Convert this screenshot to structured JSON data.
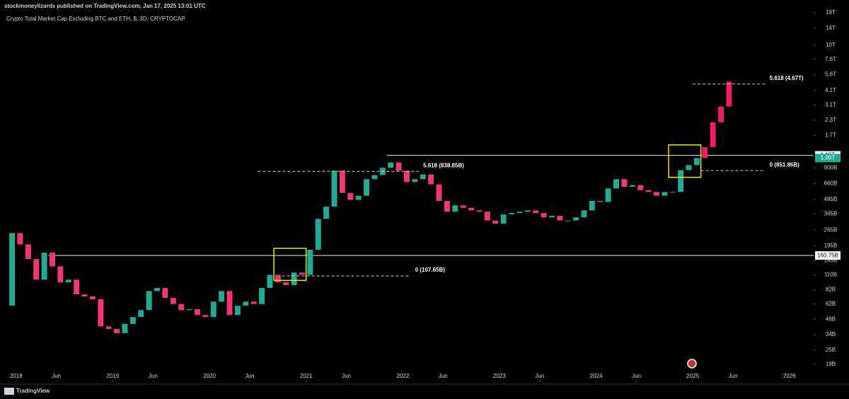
{
  "header": "stockmoneylizards published on TradingView.com, Jan 17, 2025 13:01 UTC",
  "footer": "TradingView",
  "chart_data": {
    "type": "candlestick",
    "title": "Crypto Total Market Cap Excluding BTC and ETH, $, 3D, CRYPTOCAP",
    "log_scale": true,
    "grid": false,
    "x": [
      "2017-12",
      "2018-01",
      "2018-02",
      "2018-03",
      "2018-04",
      "2018-05",
      "2018-06",
      "2018-07",
      "2018-08",
      "2018-09",
      "2018-10",
      "2018-11",
      "2018-12",
      "2019-01",
      "2019-02",
      "2019-03",
      "2019-04",
      "2019-05",
      "2019-06",
      "2019-07",
      "2019-08",
      "2019-09",
      "2019-10",
      "2019-11",
      "2019-12",
      "2020-01",
      "2020-02",
      "2020-03",
      "2020-04",
      "2020-05",
      "2020-06",
      "2020-07",
      "2020-08",
      "2020-09",
      "2020-10",
      "2020-11",
      "2020-12",
      "2021-01",
      "2021-02",
      "2021-03",
      "2021-04",
      "2021-05",
      "2021-06",
      "2021-07",
      "2021-08",
      "2021-09",
      "2021-10",
      "2021-11",
      "2021-12",
      "2022-01",
      "2022-02",
      "2022-03",
      "2022-04",
      "2022-05",
      "2022-06",
      "2022-07",
      "2022-08",
      "2022-09",
      "2022-10",
      "2022-11",
      "2022-12",
      "2023-01",
      "2023-02",
      "2023-03",
      "2023-04",
      "2023-05",
      "2023-06",
      "2023-07",
      "2023-08",
      "2023-09",
      "2023-10",
      "2023-11",
      "2023-12",
      "2024-01",
      "2024-02",
      "2024-03",
      "2024-04",
      "2024-05",
      "2024-06",
      "2024-07",
      "2024-08",
      "2024-09",
      "2024-10",
      "2024-11",
      "2024-12",
      "2025-01"
    ],
    "open": [
      60,
      250,
      200,
      150,
      100,
      170,
      130,
      95,
      100,
      75,
      72,
      68,
      40,
      38,
      35,
      42,
      48,
      55,
      80,
      85,
      70,
      62,
      55,
      56,
      50,
      48,
      65,
      80,
      50,
      60,
      65,
      62,
      85,
      110,
      95,
      90,
      115,
      110,
      180,
      330,
      420,
      850,
      550,
      480,
      520,
      720,
      780,
      900,
      1000,
      850,
      680,
      720,
      790,
      650,
      470,
      380,
      430,
      410,
      390,
      380,
      320,
      300,
      360,
      370,
      380,
      390,
      370,
      340,
      350,
      320,
      320,
      340,
      390,
      470,
      460,
      600,
      720,
      620,
      640,
      580,
      560,
      520,
      560,
      560,
      860,
      950
    ],
    "close": [
      250,
      200,
      150,
      100,
      170,
      130,
      95,
      100,
      75,
      72,
      68,
      40,
      38,
      35,
      42,
      48,
      55,
      80,
      85,
      70,
      62,
      55,
      56,
      50,
      48,
      65,
      80,
      50,
      60,
      65,
      62,
      85,
      110,
      95,
      90,
      115,
      110,
      180,
      330,
      420,
      850,
      550,
      480,
      520,
      720,
      780,
      900,
      1000,
      850,
      680,
      720,
      790,
      650,
      470,
      380,
      430,
      410,
      390,
      380,
      320,
      300,
      360,
      370,
      380,
      390,
      370,
      340,
      350,
      320,
      320,
      340,
      390,
      470,
      460,
      600,
      720,
      620,
      640,
      580,
      560,
      520,
      560,
      560,
      860,
      950,
      1090
    ],
    "up_color": "#22ab94",
    "down_color": "#f23670",
    "projection": {
      "color": "#e91e63",
      "x": [
        "2025-02",
        "2025-03",
        "2025-04",
        "2025-05"
      ],
      "open": [
        1090,
        1350,
        2200,
        3000
      ],
      "close": [
        1350,
        2200,
        3000,
        4900
      ]
    },
    "xlim": [
      "2017-11",
      "2026-04"
    ],
    "xticks": [
      {
        "value": "2018-01",
        "label": "2018"
      },
      {
        "value": "2018-06",
        "label": "Jun"
      },
      {
        "value": "2019-01",
        "label": "2019"
      },
      {
        "value": "2019-06",
        "label": "Jun"
      },
      {
        "value": "2020-01",
        "label": "2020"
      },
      {
        "value": "2020-06",
        "label": "Jun"
      },
      {
        "value": "2021-01",
        "label": "2021"
      },
      {
        "value": "2021-06",
        "label": "Jun"
      },
      {
        "value": "2022-01",
        "label": "2022"
      },
      {
        "value": "2022-06",
        "label": "Jun"
      },
      {
        "value": "2023-01",
        "label": "2023"
      },
      {
        "value": "2023-06",
        "label": "Jun"
      },
      {
        "value": "2024-01",
        "label": "2024"
      },
      {
        "value": "2024-06",
        "label": "Jun"
      },
      {
        "value": "2025-01",
        "label": "2025"
      },
      {
        "value": "2025-06",
        "label": "Jun"
      },
      {
        "value": "2026-01",
        "label": "2026"
      }
    ],
    "ylim": [
      13.4,
      24300
    ],
    "yticks": [
      {
        "value": 19,
        "label": "19B"
      },
      {
        "value": 25,
        "label": "25B"
      },
      {
        "value": 34,
        "label": "34B"
      },
      {
        "value": 46,
        "label": "46B"
      },
      {
        "value": 62,
        "label": "62B"
      },
      {
        "value": 82,
        "label": "82B"
      },
      {
        "value": 110,
        "label": "110B"
      },
      {
        "value": 145,
        "label": "145B"
      },
      {
        "value": 195,
        "label": "195B"
      },
      {
        "value": 265,
        "label": "265B"
      },
      {
        "value": 365,
        "label": "365B"
      },
      {
        "value": 485,
        "label": "485B"
      },
      {
        "value": 660,
        "label": "660B"
      },
      {
        "value": 900,
        "label": "900B"
      },
      {
        "value": 1700,
        "label": "1.7T"
      },
      {
        "value": 2300,
        "label": "2.3T"
      },
      {
        "value": 3100,
        "label": "3.1T"
      },
      {
        "value": 4100,
        "label": "4.1T"
      },
      {
        "value": 5600,
        "label": "5.6T"
      },
      {
        "value": 7600,
        "label": "7.6T"
      },
      {
        "value": 10000,
        "label": "10T"
      },
      {
        "value": 14000,
        "label": "14T"
      },
      {
        "value": 19000,
        "label": "19T"
      }
    ],
    "price_lines": [
      {
        "value": 160.75,
        "label": "160.75B",
        "x_start": "2018-05"
      },
      {
        "value": 1150,
        "label": "1.15T",
        "x_start": "2021-11"
      }
    ],
    "last_price": {
      "value": 1090,
      "label": "1.09T",
      "color": "#22ab94"
    },
    "fib_levels": [
      {
        "text": "5.618 (838.85B)",
        "value": 838.85,
        "x": [
          "2020-07",
          "2022-03"
        ]
      },
      {
        "text": "0 (107.65B)",
        "value": 107.65,
        "x": [
          "2020-10",
          "2022-02"
        ]
      },
      {
        "text": "5.618 (4.67T)",
        "value": 4670,
        "x": [
          "2025-01",
          "2025-10"
        ]
      },
      {
        "text": "0 (851.86B)",
        "value": 851.86,
        "x": [
          "2025-02",
          "2025-10"
        ]
      }
    ],
    "boxes": [
      {
        "x": [
          "2020-09",
          "2021-01"
        ],
        "y": [
          98.6,
          185
        ]
      },
      {
        "x": [
          "2024-10",
          "2025-02"
        ],
        "y": [
          747,
          1411
        ]
      }
    ],
    "box_color": "#f5e50a"
  }
}
